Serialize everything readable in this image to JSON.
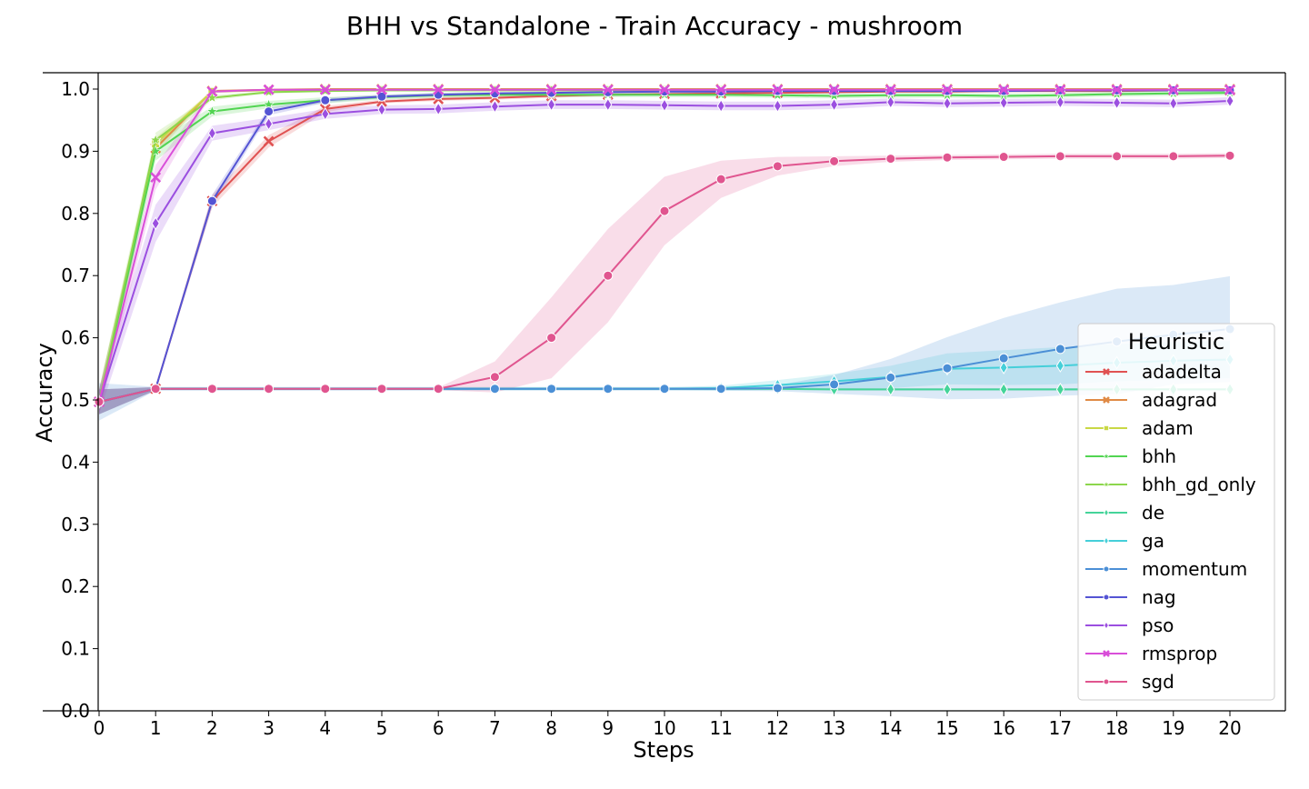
{
  "chart_data": {
    "type": "line",
    "title": "BHH vs Standalone - Train Accuracy - mushroom",
    "xlabel": "Steps",
    "ylabel": "Accuracy",
    "xlim": [
      0,
      20
    ],
    "ylim": [
      0.0,
      1.0
    ],
    "x": [
      0,
      1,
      2,
      3,
      4,
      5,
      6,
      7,
      8,
      9,
      10,
      11,
      12,
      13,
      14,
      15,
      16,
      17,
      18,
      19,
      20
    ],
    "xticks": [
      "0",
      "1",
      "2",
      "3",
      "4",
      "5",
      "6",
      "7",
      "8",
      "9",
      "10",
      "11",
      "12",
      "13",
      "14",
      "15",
      "16",
      "17",
      "18",
      "19",
      "20"
    ],
    "yticks": [
      "0.0",
      "0.1",
      "0.2",
      "0.3",
      "0.4",
      "0.5",
      "0.6",
      "0.7",
      "0.8",
      "0.9",
      "1.0"
    ],
    "grid": false,
    "legend": {
      "title": "Heuristic",
      "placement": "right"
    },
    "series": [
      {
        "name": "adadelta",
        "color": "#e05252",
        "marker": "x",
        "values": [
          0.497,
          0.518,
          0.82,
          0.916,
          0.968,
          0.98,
          0.984,
          0.986,
          0.989,
          0.991,
          0.992,
          0.993,
          0.994,
          0.995,
          0.996,
          0.996,
          0.997,
          0.997,
          0.997,
          0.998,
          0.998
        ],
        "band": [
          0.02,
          0.003,
          0.01,
          0.01,
          0.005,
          0.003,
          0.003,
          0.003,
          0.003,
          0.002,
          0.002,
          0.002,
          0.002,
          0.002,
          0.002,
          0.002,
          0.002,
          0.002,
          0.002,
          0.002,
          0.002
        ]
      },
      {
        "name": "adagrad",
        "color": "#e08a45",
        "marker": "x",
        "values": [
          0.497,
          0.905,
          0.997,
          0.999,
          1.0,
          1.0,
          1.0,
          1.0,
          1.0,
          1.0,
          1.0,
          1.0,
          1.0,
          1.0,
          1.0,
          1.0,
          1.0,
          1.0,
          1.0,
          1.0,
          1.0
        ],
        "band": [
          0.02,
          0.01,
          0.002,
          0.001,
          0.001,
          0.001,
          0.001,
          0.001,
          0.001,
          0.001,
          0.001,
          0.001,
          0.001,
          0.001,
          0.001,
          0.001,
          0.001,
          0.001,
          0.001,
          0.001,
          0.001
        ]
      },
      {
        "name": "adam",
        "color": "#c9d845",
        "marker": "square",
        "values": [
          0.497,
          0.912,
          0.996,
          0.998,
          0.999,
          0.999,
          0.999,
          0.999,
          0.999,
          0.999,
          0.999,
          0.999,
          0.999,
          0.999,
          0.999,
          0.999,
          0.999,
          0.999,
          0.999,
          0.999,
          0.999
        ],
        "band": [
          0.02,
          0.01,
          0.002,
          0.001,
          0.001,
          0.001,
          0.001,
          0.001,
          0.001,
          0.001,
          0.001,
          0.001,
          0.001,
          0.001,
          0.001,
          0.001,
          0.001,
          0.001,
          0.001,
          0.001,
          0.001
        ]
      },
      {
        "name": "bhh",
        "color": "#52d452",
        "marker": "star",
        "values": [
          0.497,
          0.9,
          0.964,
          0.975,
          0.982,
          0.987,
          0.99,
          0.991,
          0.991,
          0.991,
          0.991,
          0.991,
          0.99,
          0.989,
          0.99,
          0.99,
          0.989,
          0.99,
          0.992,
          0.993,
          0.994
        ],
        "band": [
          0.02,
          0.015,
          0.008,
          0.006,
          0.005,
          0.004,
          0.004,
          0.004,
          0.004,
          0.004,
          0.004,
          0.004,
          0.004,
          0.004,
          0.004,
          0.004,
          0.004,
          0.004,
          0.004,
          0.004,
          0.004
        ]
      },
      {
        "name": "bhh_gd_only",
        "color": "#8cd64c",
        "marker": "star",
        "values": [
          0.497,
          0.918,
          0.986,
          0.995,
          0.997,
          0.998,
          0.998,
          0.998,
          0.998,
          0.998,
          0.998,
          0.998,
          0.998,
          0.998,
          0.998,
          0.998,
          0.998,
          0.998,
          0.998,
          0.998,
          0.998
        ],
        "band": [
          0.02,
          0.012,
          0.004,
          0.002,
          0.002,
          0.002,
          0.002,
          0.002,
          0.002,
          0.002,
          0.002,
          0.002,
          0.002,
          0.002,
          0.002,
          0.002,
          0.002,
          0.002,
          0.002,
          0.002,
          0.002
        ]
      },
      {
        "name": "de",
        "color": "#45d49a",
        "marker": "diamond",
        "values": [
          0.497,
          0.518,
          0.518,
          0.518,
          0.518,
          0.518,
          0.518,
          0.518,
          0.518,
          0.518,
          0.518,
          0.518,
          0.518,
          0.517,
          0.517,
          0.517,
          0.517,
          0.517,
          0.517,
          0.517,
          0.517
        ],
        "band": [
          0.02,
          0.002,
          0.002,
          0.002,
          0.002,
          0.002,
          0.002,
          0.002,
          0.002,
          0.002,
          0.002,
          0.002,
          0.002,
          0.002,
          0.002,
          0.002,
          0.002,
          0.002,
          0.002,
          0.002,
          0.002
        ]
      },
      {
        "name": "ga",
        "color": "#45cfd9",
        "marker": "diamond",
        "values": [
          0.497,
          0.518,
          0.518,
          0.518,
          0.518,
          0.518,
          0.518,
          0.518,
          0.518,
          0.518,
          0.518,
          0.519,
          0.524,
          0.53,
          0.537,
          0.55,
          0.552,
          0.555,
          0.56,
          0.563,
          0.565
        ],
        "band": [
          0.02,
          0.002,
          0.002,
          0.002,
          0.002,
          0.002,
          0.002,
          0.002,
          0.002,
          0.002,
          0.002,
          0.004,
          0.008,
          0.012,
          0.018,
          0.025,
          0.028,
          0.03,
          0.03,
          0.03,
          0.03
        ]
      },
      {
        "name": "momentum",
        "color": "#4b8fd6",
        "marker": "circle",
        "values": [
          0.497,
          0.518,
          0.518,
          0.518,
          0.518,
          0.518,
          0.518,
          0.518,
          0.518,
          0.518,
          0.518,
          0.518,
          0.519,
          0.525,
          0.536,
          0.551,
          0.567,
          0.582,
          0.594,
          0.605,
          0.614
        ],
        "band": [
          0.03,
          0.003,
          0.003,
          0.003,
          0.003,
          0.003,
          0.003,
          0.003,
          0.003,
          0.003,
          0.003,
          0.003,
          0.005,
          0.015,
          0.03,
          0.05,
          0.065,
          0.075,
          0.085,
          0.08,
          0.085
        ]
      },
      {
        "name": "nag",
        "color": "#5454d4",
        "marker": "circle",
        "values": [
          0.497,
          0.518,
          0.82,
          0.964,
          0.982,
          0.988,
          0.991,
          0.993,
          0.994,
          0.995,
          0.996,
          0.996,
          0.997,
          0.997,
          0.997,
          0.997,
          0.997,
          0.998,
          0.998,
          0.998,
          0.998
        ],
        "band": [
          0.02,
          0.003,
          0.01,
          0.006,
          0.004,
          0.003,
          0.003,
          0.002,
          0.002,
          0.002,
          0.002,
          0.002,
          0.002,
          0.002,
          0.002,
          0.002,
          0.002,
          0.002,
          0.002,
          0.002,
          0.002
        ]
      },
      {
        "name": "pso",
        "color": "#9b4fe0",
        "marker": "diamond",
        "values": [
          0.497,
          0.784,
          0.929,
          0.944,
          0.96,
          0.967,
          0.968,
          0.972,
          0.975,
          0.975,
          0.974,
          0.973,
          0.973,
          0.975,
          0.979,
          0.977,
          0.978,
          0.979,
          0.978,
          0.977,
          0.981
        ],
        "band": [
          0.02,
          0.03,
          0.012,
          0.01,
          0.008,
          0.007,
          0.007,
          0.007,
          0.007,
          0.007,
          0.007,
          0.007,
          0.007,
          0.007,
          0.006,
          0.006,
          0.006,
          0.006,
          0.006,
          0.006,
          0.006
        ]
      },
      {
        "name": "rmsprop",
        "color": "#d94fd9",
        "marker": "x",
        "values": [
          0.497,
          0.858,
          0.996,
          0.999,
          0.999,
          0.999,
          0.999,
          0.999,
          0.999,
          0.999,
          0.999,
          0.999,
          0.999,
          0.999,
          0.999,
          0.999,
          0.999,
          0.999,
          0.999,
          0.999,
          0.999
        ],
        "band": [
          0.02,
          0.02,
          0.003,
          0.001,
          0.001,
          0.001,
          0.001,
          0.001,
          0.001,
          0.001,
          0.001,
          0.001,
          0.001,
          0.001,
          0.001,
          0.001,
          0.001,
          0.001,
          0.001,
          0.001,
          0.001
        ]
      },
      {
        "name": "sgd",
        "color": "#e0558f",
        "marker": "circle",
        "values": [
          0.497,
          0.518,
          0.518,
          0.518,
          0.518,
          0.518,
          0.518,
          0.537,
          0.6,
          0.7,
          0.804,
          0.855,
          0.876,
          0.884,
          0.888,
          0.89,
          0.891,
          0.892,
          0.892,
          0.892,
          0.893
        ],
        "band": [
          0.02,
          0.002,
          0.002,
          0.002,
          0.002,
          0.002,
          0.002,
          0.025,
          0.065,
          0.075,
          0.055,
          0.03,
          0.015,
          0.008,
          0.005,
          0.004,
          0.004,
          0.004,
          0.004,
          0.004,
          0.004
        ]
      }
    ]
  }
}
